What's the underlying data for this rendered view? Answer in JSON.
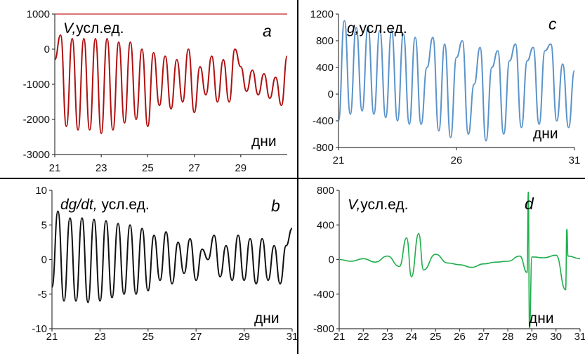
{
  "chart_data": [
    {
      "id": "a",
      "type": "line",
      "label_symbol": "V,",
      "label_unit": "усл.ед.",
      "letter": "a",
      "xlabel": "дни",
      "xlim": [
        21,
        31
      ],
      "ylim": [
        -3000,
        1000
      ],
      "xticks": [
        "21",
        "23",
        "25",
        "27",
        "29"
      ],
      "yticks": [
        "1000",
        "0",
        "-1000",
        "-2000",
        "-3000"
      ],
      "color": "#b01010",
      "series": [
        {
          "x": [
            21.0,
            21.25,
            21.5,
            21.75,
            22.0,
            22.25,
            22.5,
            22.75,
            23.0,
            23.25,
            23.5,
            23.75,
            24.0,
            24.25,
            24.5,
            24.75,
            25.0,
            25.25,
            25.5,
            25.75,
            26.0,
            26.25,
            26.5,
            26.75,
            27.0,
            27.25,
            27.5,
            27.75,
            28.0,
            28.25,
            28.5,
            28.75,
            29.0,
            29.25,
            29.5,
            29.75,
            30.0,
            30.25,
            30.5,
            30.75,
            31.0
          ],
          "y": [
            -300,
            400,
            -2200,
            300,
            -2300,
            300,
            -2300,
            300,
            -2400,
            300,
            -2300,
            200,
            -2100,
            200,
            -2000,
            0,
            -2200,
            -100,
            -1600,
            -200,
            -1700,
            -300,
            -1500,
            0,
            -1800,
            -500,
            -1300,
            -200,
            -1500,
            -300,
            -1500,
            0,
            -500,
            -1200,
            -600,
            -1300,
            -700,
            -1400,
            -800,
            -1600,
            -200
          ]
        }
      ]
    },
    {
      "id": "c",
      "type": "line",
      "label_symbol": "g,",
      "label_unit": "усл.ед.",
      "letter": "c",
      "xlabel": "дни",
      "xlim": [
        21,
        31
      ],
      "ylim": [
        -800,
        1200
      ],
      "xticks": [
        "21",
        "26",
        "31"
      ],
      "yticks": [
        "1200",
        "800",
        "400",
        "0",
        "-400",
        "-800"
      ],
      "color": "#5b93c9",
      "series": [
        {
          "x": [
            21.0,
            21.25,
            21.5,
            21.75,
            22.0,
            22.25,
            22.5,
            22.75,
            23.0,
            23.25,
            23.5,
            23.75,
            24.0,
            24.25,
            24.5,
            24.75,
            25.0,
            25.25,
            25.5,
            25.75,
            26.0,
            26.25,
            26.5,
            26.75,
            27.0,
            27.25,
            27.5,
            27.75,
            28.0,
            28.25,
            28.5,
            28.75,
            29.0,
            29.25,
            29.5,
            29.75,
            30.0,
            30.25,
            30.5,
            30.75,
            31.0
          ],
          "y": [
            -400,
            1100,
            -300,
            1000,
            -250,
            1000,
            -300,
            950,
            -350,
            950,
            -400,
            900,
            -450,
            850,
            -450,
            400,
            850,
            -550,
            750,
            -650,
            550,
            800,
            -600,
            150,
            700,
            -700,
            400,
            650,
            -600,
            500,
            750,
            -500,
            500,
            700,
            -450,
            650,
            750,
            -400,
            450,
            -500,
            350
          ]
        }
      ]
    },
    {
      "id": "b",
      "type": "line",
      "label_symbol": "dg/dt,",
      "label_unit": "усл.ед.",
      "letter": "b",
      "xlabel": "дни",
      "xlim": [
        21,
        31
      ],
      "ylim": [
        -10,
        10
      ],
      "xticks": [
        "21",
        "23",
        "25",
        "27",
        "29",
        "31"
      ],
      "yticks": [
        "10",
        "5",
        "0",
        "-5",
        "-10"
      ],
      "color": "#111111",
      "series": [
        {
          "x": [
            21.0,
            21.25,
            21.5,
            21.75,
            22.0,
            22.25,
            22.5,
            22.75,
            23.0,
            23.25,
            23.5,
            23.75,
            24.0,
            24.25,
            24.5,
            24.75,
            25.0,
            25.25,
            25.5,
            25.75,
            26.0,
            26.25,
            26.5,
            26.75,
            27.0,
            27.25,
            27.5,
            27.75,
            28.0,
            28.25,
            28.5,
            28.75,
            29.0,
            29.25,
            29.5,
            29.75,
            30.0,
            30.25,
            30.5,
            30.75,
            31.0
          ],
          "y": [
            -4,
            7,
            -6,
            6,
            -6,
            6,
            -6.2,
            5.8,
            -6,
            5.6,
            -5.5,
            5.2,
            -5,
            5,
            -5,
            4.5,
            -4.5,
            3.5,
            -3,
            4,
            -3.5,
            2.5,
            -2,
            3,
            -3,
            1.5,
            0,
            3.5,
            -2.5,
            2,
            -3,
            3.5,
            -3,
            3,
            -3.5,
            3,
            -3,
            2,
            -3.5,
            2,
            4.5
          ]
        }
      ]
    },
    {
      "id": "d",
      "type": "line",
      "label_symbol": "V,",
      "label_unit": "усл.ед.",
      "letter": "d",
      "xlabel": "дни",
      "xlim": [
        21,
        31
      ],
      "ylim": [
        -800,
        800
      ],
      "xticks": [
        "21",
        "22",
        "23",
        "24",
        "25",
        "26",
        "27",
        "28",
        "29",
        "30",
        "31"
      ],
      "yticks": [
        "800",
        "400",
        "0",
        "-400",
        "-800"
      ],
      "color": "#1fae4b",
      "series": [
        {
          "x": [
            21.0,
            21.5,
            22.0,
            22.5,
            23.0,
            23.5,
            23.8,
            24.0,
            24.3,
            24.5,
            25.0,
            25.5,
            26.0,
            26.5,
            27.0,
            27.5,
            28.0,
            28.5,
            28.8,
            28.85,
            28.9,
            29.0,
            29.5,
            30.0,
            30.4,
            30.45,
            30.5,
            31.0
          ],
          "y": [
            0,
            -20,
            10,
            -30,
            40,
            -80,
            250,
            -200,
            300,
            -120,
            60,
            -40,
            -60,
            -90,
            -50,
            -30,
            -20,
            40,
            -150,
            780,
            -800,
            30,
            20,
            50,
            -350,
            350,
            40,
            10
          ]
        }
      ]
    }
  ]
}
